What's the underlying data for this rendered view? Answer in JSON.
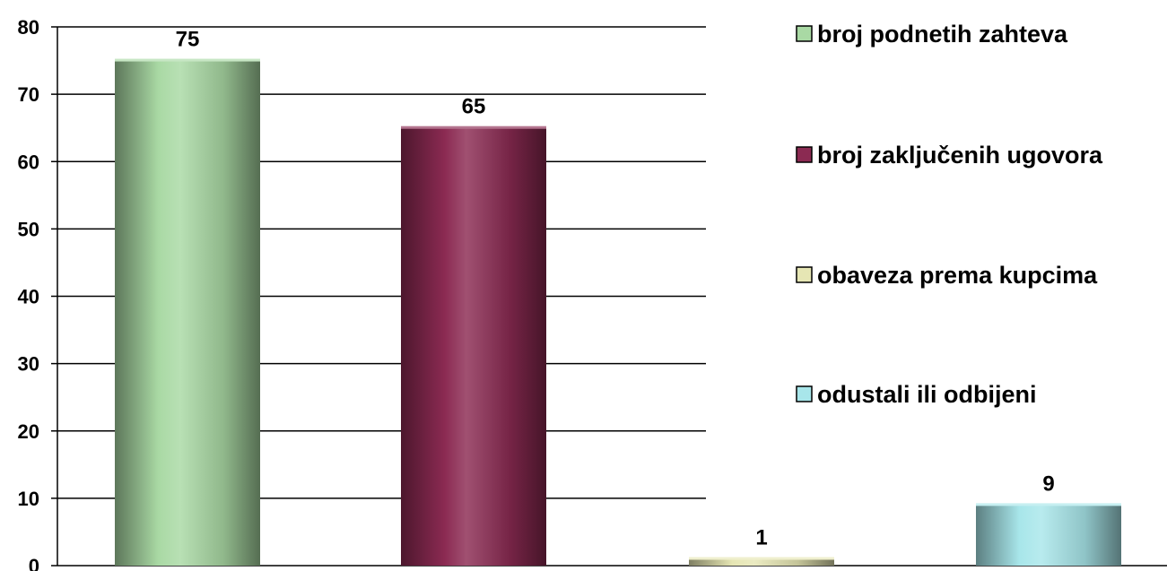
{
  "chart_data": {
    "type": "bar",
    "title": "",
    "xlabel": "",
    "ylabel": "",
    "ylim": [
      0,
      80
    ],
    "yticks": [
      0,
      10,
      20,
      30,
      40,
      50,
      60,
      70,
      80
    ],
    "grid": true,
    "legend_position": "right",
    "series": [
      {
        "name": "broj podnetih zahteva",
        "value": 75,
        "label": "75",
        "color": "#a9d9a4"
      },
      {
        "name": "broj zaključenih ugovora",
        "value": 65,
        "label": "65",
        "color": "#8b2a52"
      },
      {
        "name": "obaveza prema kupcima",
        "value": 1,
        "label": "1",
        "color": "#e6e6b4"
      },
      {
        "name": "odustali ili odbijeni",
        "value": 9,
        "label": "9",
        "color": "#a8e6ea"
      }
    ]
  }
}
